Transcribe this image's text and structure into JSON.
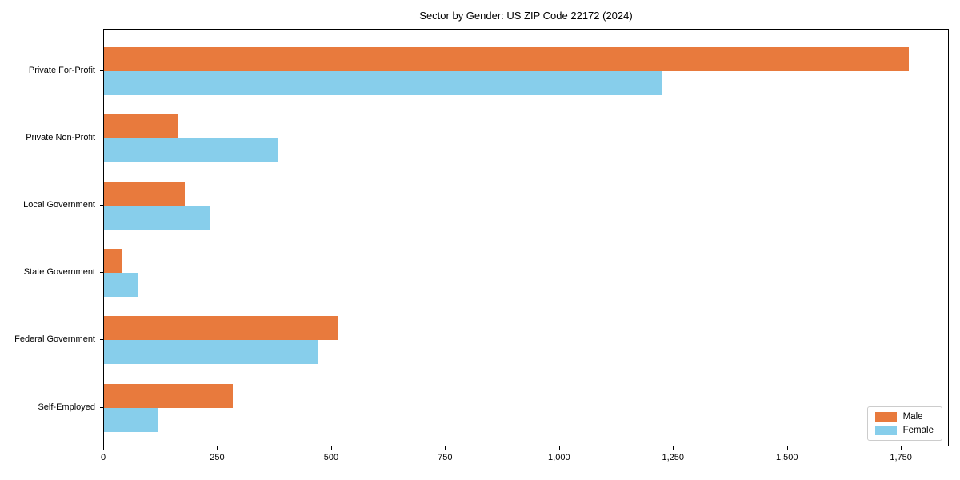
{
  "chart_data": {
    "type": "bar",
    "orientation": "horizontal",
    "title": "Sector by Gender: US ZIP Code 22172 (2024)",
    "categories": [
      "Private For-Profit",
      "Private Non-Profit",
      "Local Government",
      "State Government",
      "Federal Government",
      "Self-Employed"
    ],
    "series": [
      {
        "name": "Male",
        "color": "#e87a3d",
        "values": [
          1766,
          164,
          178,
          41,
          513,
          283
        ]
      },
      {
        "name": "Female",
        "color": "#87ceeb",
        "values": [
          1225,
          383,
          234,
          73,
          469,
          117
        ]
      }
    ],
    "xlim": [
      0,
      1855
    ],
    "xticks": [
      0,
      250,
      500,
      750,
      1000,
      1250,
      1500,
      1750
    ],
    "xtick_labels": [
      "0",
      "250",
      "500",
      "750",
      "1,000",
      "1,250",
      "1,500",
      "1,750"
    ],
    "ylabel": "",
    "xlabel": "",
    "grid": false,
    "legend_position": "lower right",
    "background_color": "#ffffff",
    "spine_color": "#000000"
  }
}
